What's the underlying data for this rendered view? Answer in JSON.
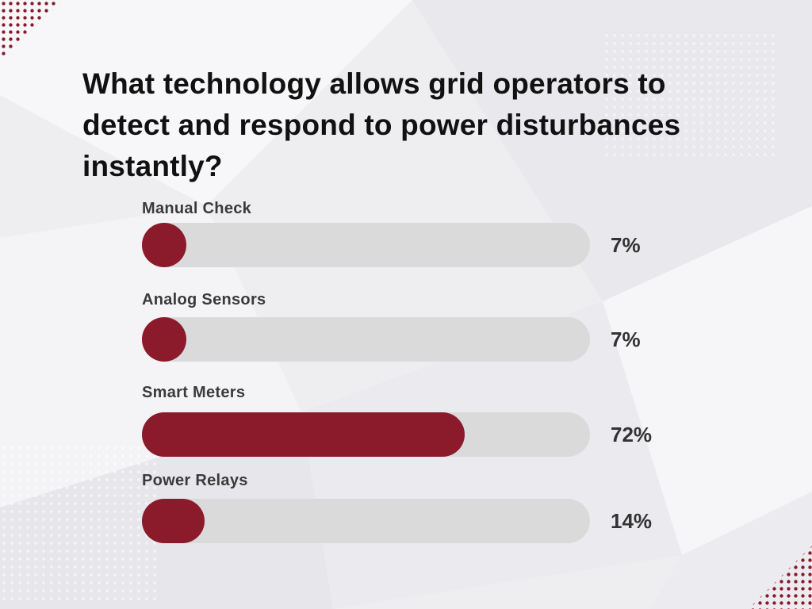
{
  "colors": {
    "accent": "#8b1a2b",
    "track": "#dadada",
    "text": "#111111"
  },
  "chart_data": {
    "type": "bar",
    "orientation": "horizontal",
    "title": "What technology allows grid operators to detect and respond to power disturbances instantly?",
    "categories": [
      "Manual Check",
      "Analog Sensors",
      "Smart Meters",
      "Power Relays"
    ],
    "values": [
      7,
      7,
      72,
      14
    ],
    "value_labels": [
      "7%",
      "7%",
      "72%",
      "14%"
    ],
    "unit": "%",
    "xlim": [
      0,
      100
    ],
    "grid": false,
    "legend": "none"
  }
}
